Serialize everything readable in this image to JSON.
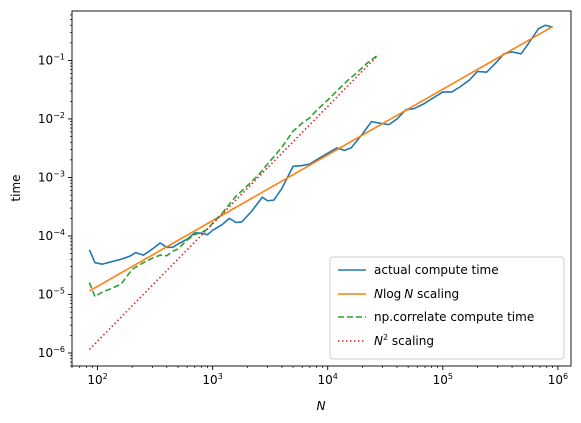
{
  "chart_data": {
    "type": "line",
    "xscale": "log",
    "yscale": "log",
    "xlim": [
      60,
      1300000
    ],
    "ylim": [
      6e-07,
      0.7
    ],
    "xlabel": "N",
    "ylabel": "time",
    "grid": false,
    "legend": "lower-right",
    "x_ticks": [
      {
        "base": "10",
        "exp": "2"
      },
      {
        "base": "10",
        "exp": "3"
      },
      {
        "base": "10",
        "exp": "4"
      },
      {
        "base": "10",
        "exp": "5"
      },
      {
        "base": "10",
        "exp": "6"
      }
    ],
    "y_ticks": [
      {
        "base": "10",
        "exp": "−6"
      },
      {
        "base": "10",
        "exp": "−5"
      },
      {
        "base": "10",
        "exp": "−4"
      },
      {
        "base": "10",
        "exp": "−3"
      },
      {
        "base": "10",
        "exp": "−2"
      },
      {
        "base": "10",
        "exp": "−1"
      }
    ],
    "series": [
      {
        "name": "actual compute time",
        "color": "#1f77b4",
        "style": "solid",
        "x": [
          85,
          95,
          110,
          130,
          160,
          190,
          215,
          250,
          300,
          350,
          400,
          450,
          500,
          600,
          700,
          800,
          900,
          1000,
          1200,
          1400,
          1600,
          1800,
          2200,
          2700,
          3000,
          3400,
          4000,
          5000,
          6000,
          7000,
          8000,
          10000,
          12000,
          14000,
          16000,
          20000,
          24000,
          28000,
          34000,
          40000,
          48000,
          56000,
          68000,
          80000,
          100000,
          120000,
          140000,
          170000,
          200000,
          240000,
          280000,
          340000,
          400000,
          480000,
          560000,
          680000,
          780000,
          900000
        ],
        "y": [
          5.8e-05,
          3.5e-05,
          3.3e-05,
          3.6e-05,
          4e-05,
          4.5e-05,
          5.2e-05,
          4.7e-05,
          6e-05,
          7.6e-05,
          6.4e-05,
          6.4e-05,
          7.3e-05,
          8.8e-05,
          0.000113,
          0.000112,
          0.000105,
          0.000125,
          0.000155,
          0.0002,
          0.00017,
          0.000175,
          0.00027,
          0.00046,
          0.0004,
          0.00041,
          0.00065,
          0.00155,
          0.0016,
          0.0017,
          0.002,
          0.0026,
          0.0032,
          0.0029,
          0.0032,
          0.0055,
          0.009,
          0.0085,
          0.008,
          0.01,
          0.0145,
          0.015,
          0.018,
          0.022,
          0.029,
          0.029,
          0.035,
          0.046,
          0.065,
          0.063,
          0.085,
          0.13,
          0.14,
          0.13,
          0.2,
          0.35,
          0.4,
          0.37
        ]
      },
      {
        "name": "$N\\log N$ scaling",
        "color": "#ff7f0e",
        "style": "solid",
        "x": [
          85,
          900000
        ],
        "y": [
          1.15e-05,
          0.38
        ]
      },
      {
        "name": "np.correlate compute time",
        "color": "#2ca02c",
        "style": "dashed",
        "x": [
          85,
          95,
          110,
          130,
          160,
          200,
          250,
          300,
          350,
          400,
          450,
          500,
          600,
          700,
          800,
          900,
          1000,
          1200,
          1400,
          1600,
          2000,
          2500,
          3000,
          3500,
          4000,
          5000,
          6000,
          7000,
          8000,
          10000,
          12000,
          15000,
          18000,
          22000,
          27000
        ],
        "y": [
          1.6e-05,
          9.2e-06,
          1.1e-05,
          1.25e-05,
          1.5e-05,
          2.7e-05,
          3.5e-05,
          4.2e-05,
          4.7e-05,
          4.6e-05,
          5.5e-05,
          6e-05,
          8.5e-05,
          0.000106,
          0.000115,
          0.00013,
          0.000165,
          0.00024,
          0.00035,
          0.00048,
          0.00072,
          0.0011,
          0.0017,
          0.0024,
          0.0033,
          0.0062,
          0.0085,
          0.0105,
          0.014,
          0.021,
          0.03,
          0.046,
          0.062,
          0.09,
          0.122
        ]
      },
      {
        "name": "$N^2$ scaling",
        "color": "#d62728",
        "style": "dotted",
        "x": [
          85,
          27000
        ],
        "y": [
          1.15e-06,
          0.12
        ]
      }
    ],
    "legend_labels": [
      {
        "key": "actual",
        "text": "actual compute time"
      },
      {
        "key": "nlogn",
        "text_main": "N",
        "text_rest": "log",
        "text_tail": "N",
        "text_suffix": " scaling"
      },
      {
        "key": "npcorr",
        "text": "np.correlate compute time"
      },
      {
        "key": "n2",
        "text_main": "N",
        "text_sup": "2",
        "text_suffix": " scaling"
      }
    ]
  }
}
